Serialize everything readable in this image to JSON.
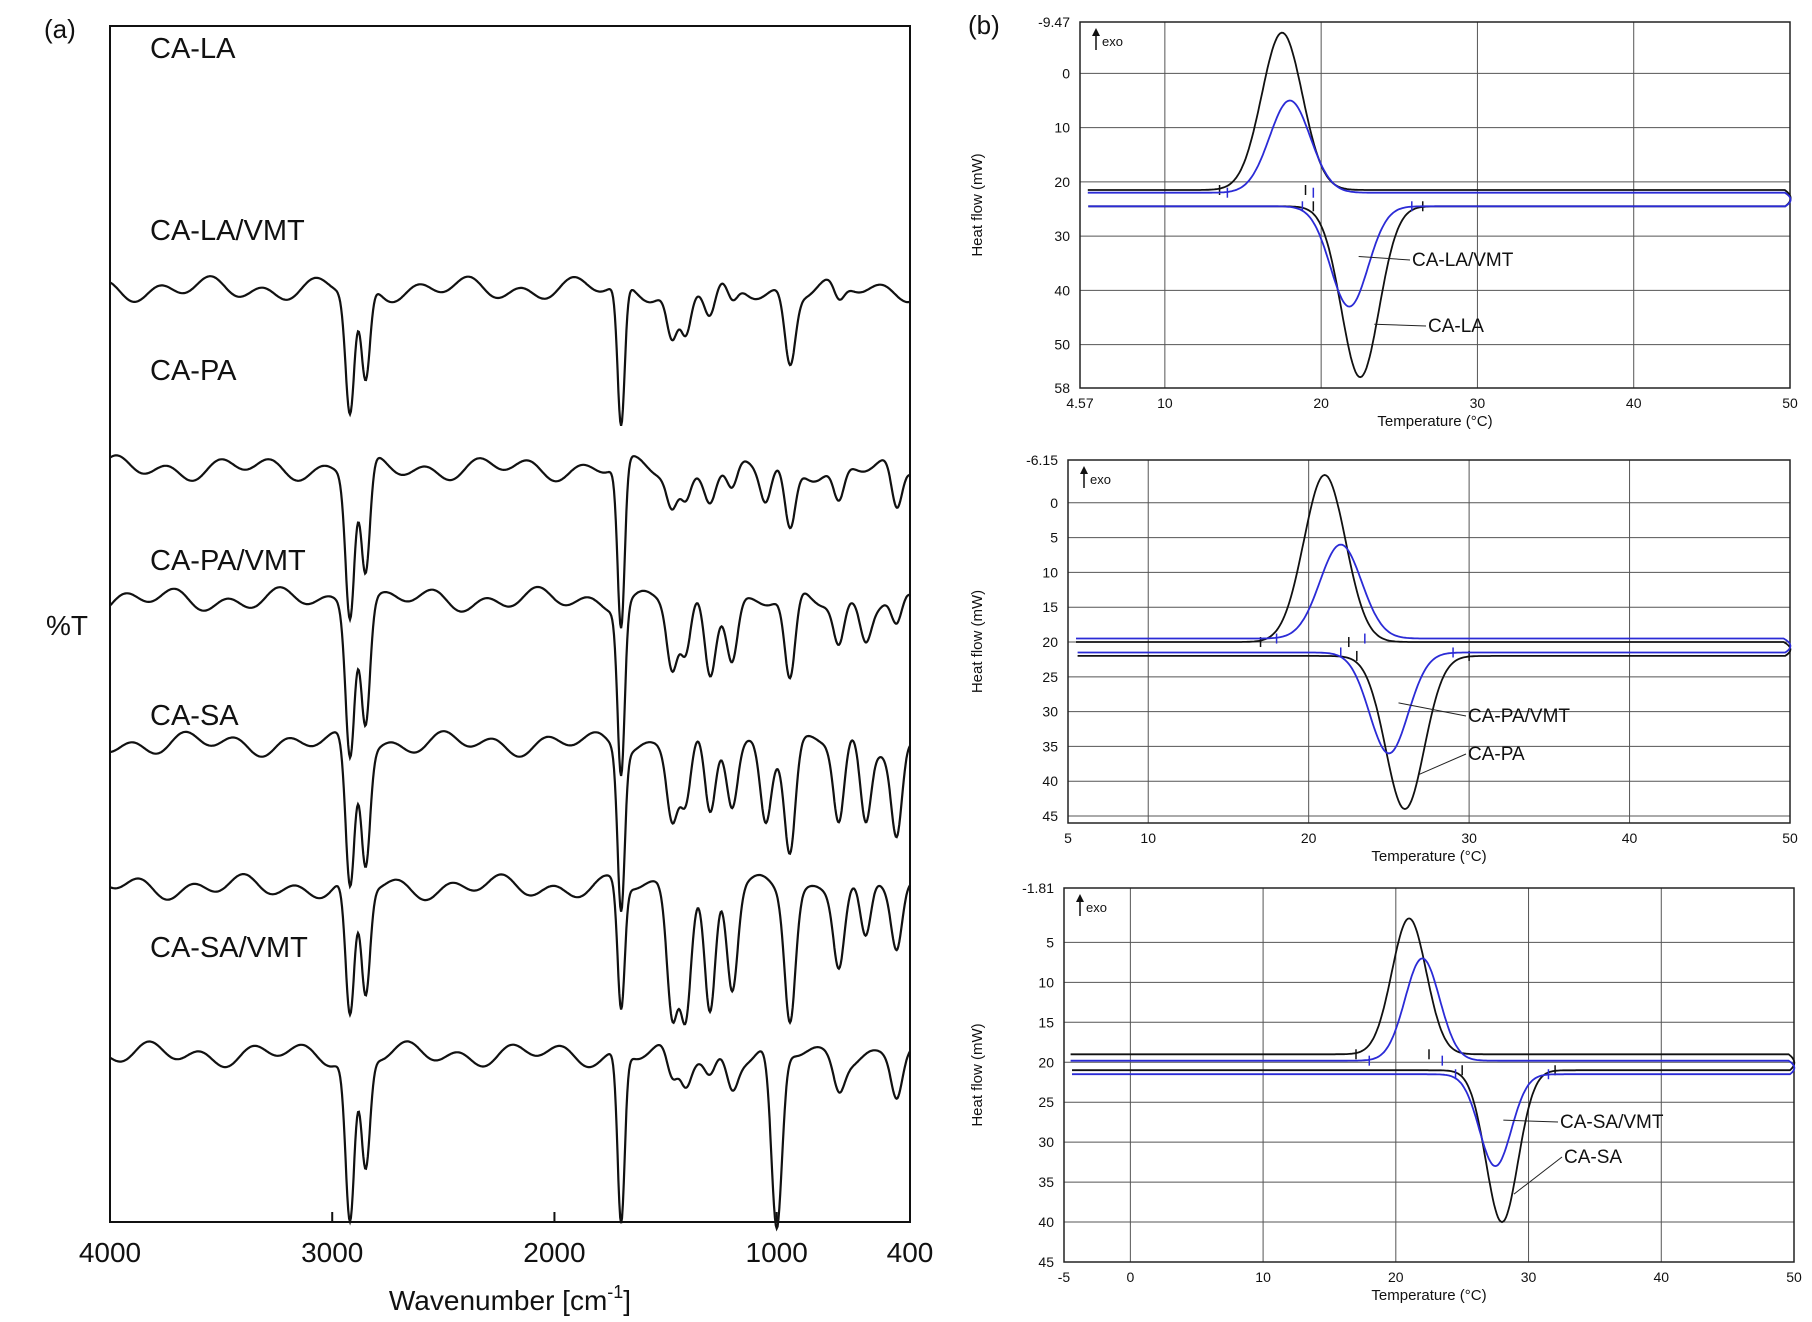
{
  "panel_a": {
    "label": "(a)",
    "ylabel": "%T",
    "xlabel": "Wavenumber [cm",
    "xlabel_sup": "-1",
    "xlabel_end": "]",
    "xticks": [
      "4000",
      "3000",
      "2000",
      "1000",
      "400"
    ]
  },
  "panel_b": {
    "label": "(b)"
  },
  "chart_data": [
    {
      "type": "line",
      "panel": "(a)",
      "xlabel": "Wavenumber [cm-1]",
      "ylabel": "%T",
      "xlim": [
        4000,
        400
      ],
      "x_reversed": true,
      "grid": false,
      "tick_labels_x": [
        "4000",
        "3000",
        "2000",
        "1000",
        "400"
      ],
      "series": [
        {
          "name": "CA-LA",
          "baseline": 78,
          "bands": [
            [
              2920,
              62
            ],
            [
              2850,
              48
            ],
            [
              1700,
              70
            ],
            [
              1470,
              26
            ],
            [
              1410,
              24
            ],
            [
              1300,
              14
            ],
            [
              1200,
              10
            ],
            [
              940,
              36
            ],
            [
              720,
              10
            ]
          ]
        },
        {
          "name": "CA-LA/VMT",
          "baseline": 63,
          "bands": [
            [
              2920,
              72
            ],
            [
              2850,
              56
            ],
            [
              1700,
              82
            ],
            [
              1470,
              18
            ],
            [
              1410,
              16
            ],
            [
              1300,
              12
            ],
            [
              1200,
              14
            ],
            [
              1050,
              16
            ],
            [
              940,
              32
            ],
            [
              720,
              18
            ],
            [
              460,
              24
            ]
          ]
        },
        {
          "name": "CA-PA",
          "baseline": 52,
          "bands": [
            [
              2920,
              72
            ],
            [
              2850,
              58
            ],
            [
              1700,
              82
            ],
            [
              1470,
              34
            ],
            [
              1410,
              30
            ],
            [
              1300,
              34
            ],
            [
              1200,
              28
            ],
            [
              940,
              44
            ],
            [
              720,
              22
            ],
            [
              600,
              16
            ],
            [
              460,
              16
            ]
          ]
        },
        {
          "name": "CA-PA/VMT",
          "baseline": 40,
          "bands": [
            [
              2920,
              72
            ],
            [
              2850,
              56
            ],
            [
              1700,
              78
            ],
            [
              1470,
              34
            ],
            [
              1410,
              30
            ],
            [
              1300,
              38
            ],
            [
              1200,
              30
            ],
            [
              1050,
              36
            ],
            [
              940,
              52
            ],
            [
              720,
              40
            ],
            [
              600,
              40
            ],
            [
              460,
              44
            ]
          ]
        },
        {
          "name": "CA-SA",
          "baseline": 28,
          "bands": [
            [
              2920,
              68
            ],
            [
              2850,
              54
            ],
            [
              1700,
              62
            ],
            [
              1470,
              60
            ],
            [
              1410,
              58
            ],
            [
              1300,
              64
            ],
            [
              1200,
              50
            ],
            [
              940,
              62
            ],
            [
              720,
              36
            ],
            [
              600,
              30
            ],
            [
              460,
              30
            ]
          ]
        },
        {
          "name": "CA-SA/VMT",
          "baseline": 14,
          "bands": [
            [
              2920,
              82
            ],
            [
              2850,
              56
            ],
            [
              1700,
              84
            ],
            [
              1470,
              16
            ],
            [
              1410,
              14
            ],
            [
              1300,
              10
            ],
            [
              1200,
              14
            ],
            [
              1000,
              90
            ],
            [
              720,
              14
            ],
            [
              460,
              20
            ]
          ]
        }
      ]
    },
    {
      "type": "line",
      "panel": "(b) top",
      "xlabel": "Temperature (°C)",
      "ylabel": "Heat flow (mW)",
      "xlim": [
        4.57,
        50
      ],
      "ylim": [
        58,
        -9.47
      ],
      "grid": true,
      "xtick_labels": [
        "4.57",
        "10",
        "20",
        "30",
        "40",
        "50"
      ],
      "ytick_labels": [
        "-9.47",
        "0",
        "10",
        "20",
        "30",
        "40",
        "50",
        "58"
      ],
      "exo_label": "exo",
      "series": [
        {
          "name": "CA-LA",
          "color": "#111111",
          "baseline_cool": 21.5,
          "baseline_heat": 24.5,
          "cool_peak": {
            "x": 17.5,
            "y": -7.5
          },
          "heat_peak": {
            "x": 22.5,
            "y": 56
          }
        },
        {
          "name": "CA-LA/VMT",
          "color": "#2b2bd6",
          "baseline_cool": 22,
          "baseline_heat": 24.5,
          "cool_peak": {
            "x": 18,
            "y": 5
          },
          "heat_peak": {
            "x": 21.8,
            "y": 43
          }
        }
      ],
      "annotations": [
        "CA-LA/VMT",
        "CA-LA"
      ]
    },
    {
      "type": "line",
      "panel": "(b) middle",
      "xlabel": "Temperature (°C)",
      "ylabel": "Heat flow (mW)",
      "xlim": [
        5,
        50
      ],
      "ylim": [
        46,
        -6.15
      ],
      "grid": true,
      "xtick_labels": [
        "5",
        "10",
        "20",
        "30",
        "40",
        "50"
      ],
      "ytick_labels": [
        "-6.15",
        "0",
        "5",
        "10",
        "15",
        "20",
        "25",
        "30",
        "35",
        "40",
        "45"
      ],
      "exo_label": "exo",
      "series": [
        {
          "name": "CA-PA",
          "color": "#111111",
          "baseline_cool": 20,
          "baseline_heat": 22,
          "cool_peak": {
            "x": 21,
            "y": -4
          },
          "heat_peak": {
            "x": 26,
            "y": 44
          }
        },
        {
          "name": "CA-PA/VMT",
          "color": "#2b2bd6",
          "baseline_cool": 19.5,
          "baseline_heat": 21.5,
          "cool_peak": {
            "x": 22,
            "y": 6
          },
          "heat_peak": {
            "x": 25,
            "y": 36
          }
        }
      ],
      "annotations": [
        "CA-PA/VMT",
        "CA-PA"
      ]
    },
    {
      "type": "line",
      "panel": "(b) bottom",
      "xlabel": "Temperature (°C)",
      "ylabel": "Heat flow (mW)",
      "xlim": [
        -5,
        50
      ],
      "ylim": [
        45,
        -1.81
      ],
      "grid": true,
      "xtick_labels": [
        "-5",
        "0",
        "10",
        "20",
        "30",
        "40",
        "50"
      ],
      "ytick_labels": [
        "-1.81",
        "5",
        "10",
        "15",
        "20",
        "25",
        "30",
        "35",
        "40",
        "45"
      ],
      "exo_label": "exo",
      "series": [
        {
          "name": "CA-SA",
          "color": "#111111",
          "baseline_cool": 19,
          "baseline_heat": 21,
          "cool_peak": {
            "x": 21,
            "y": 2
          },
          "heat_peak": {
            "x": 28,
            "y": 40
          }
        },
        {
          "name": "CA-SA/VMT",
          "color": "#2b2bd6",
          "baseline_cool": 19.8,
          "baseline_heat": 21.5,
          "cool_peak": {
            "x": 22,
            "y": 7
          },
          "heat_peak": {
            "x": 27.5,
            "y": 33
          }
        }
      ],
      "annotations": [
        "CA-SA/VMT",
        "CA-SA"
      ]
    }
  ]
}
